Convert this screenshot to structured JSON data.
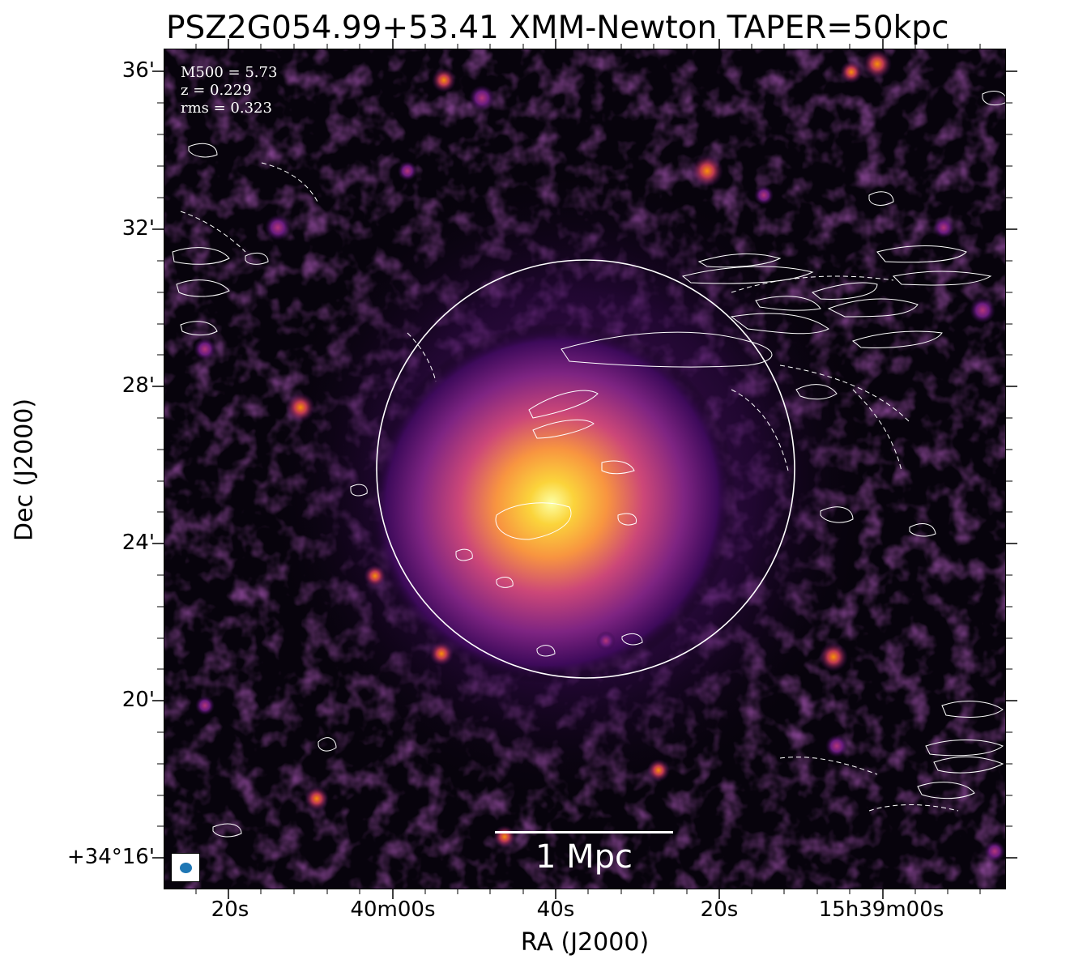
{
  "title": "PSZ2G054.99+53.41 XMM-Newton TAPER=50kpc",
  "info": {
    "m500": "M500 = 5.73",
    "z": "z = 0.229",
    "rms": "rms = 0.323"
  },
  "scalebar_label": "1 Mpc",
  "axes": {
    "xlabel": "RA (J2000)",
    "ylabel": "Dec (J2000)",
    "xticks": [
      "20s",
      "40m00s",
      "40s",
      "20s",
      "15h39m00s"
    ],
    "yticks": [
      "36'",
      "32'",
      "28'",
      "24'",
      "20'",
      "+34°16'"
    ]
  },
  "colors": {
    "colormap": "inferno",
    "contours": "#ffffff",
    "beam": "#1f77b4"
  }
}
